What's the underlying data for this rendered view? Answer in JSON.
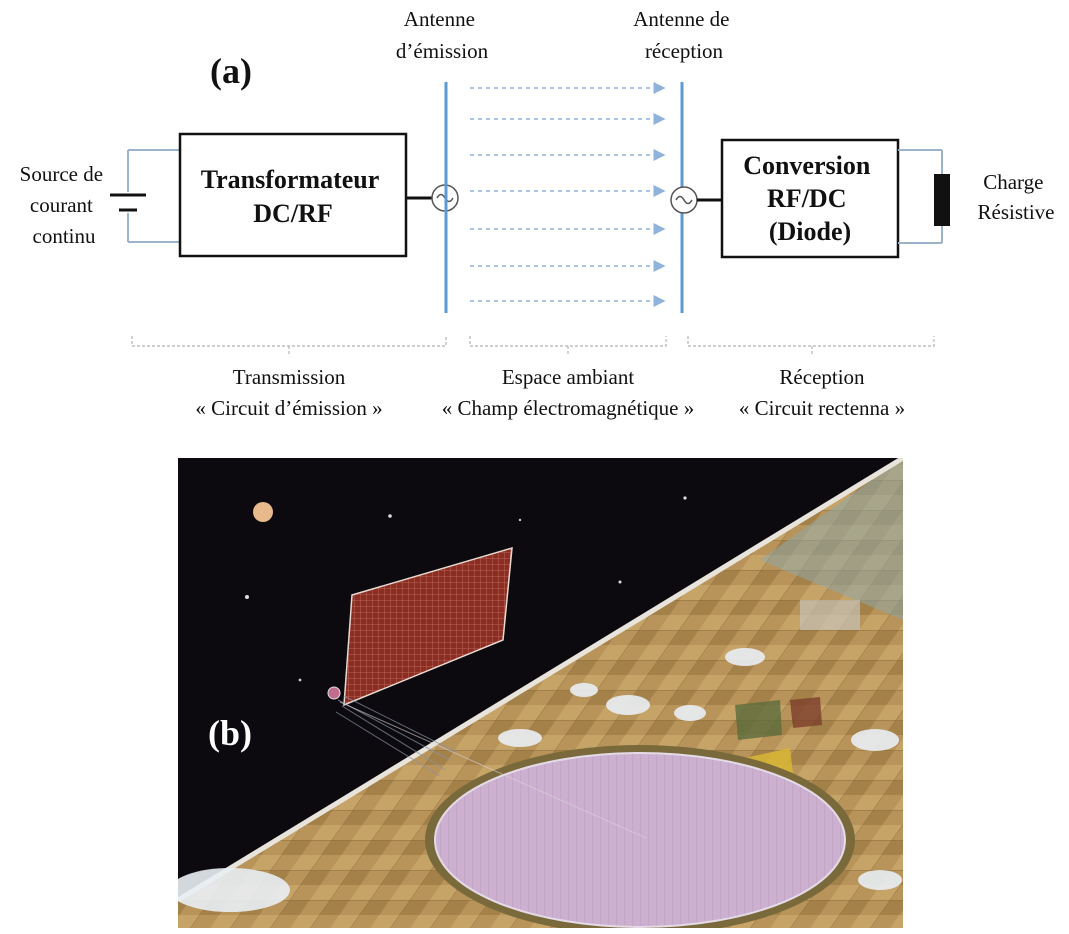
{
  "panel_a": {
    "label": "(a)",
    "source_label": [
      "Source de",
      "courant",
      "continu"
    ],
    "transformer_box": [
      "Transformateur",
      "DC/RF"
    ],
    "antenna_tx_label": [
      "Antenne",
      "d’émission"
    ],
    "antenna_rx_label": [
      "Antenne de",
      "réception"
    ],
    "conversion_box": [
      "Conversion",
      "RF/DC",
      "(Diode)"
    ],
    "load_label": [
      "Charge",
      "Résistive"
    ],
    "sections": [
      {
        "title": "Transmission",
        "subtitle": "« Circuit d’émission »"
      },
      {
        "title": "Espace ambiant",
        "subtitle": "« Champ électromagnétique »"
      },
      {
        "title": "Réception",
        "subtitle": "« Circuit rectenna »"
      }
    ]
  },
  "panel_b": {
    "label": "(b)"
  },
  "colors": {
    "antenna": "#5b9bd5",
    "wire": "#9db3cc",
    "arrow": "#8fb3dc",
    "space_bg": "#0c0a0e",
    "ground": "#b9955a",
    "rectenna": "#c6a8c8"
  }
}
